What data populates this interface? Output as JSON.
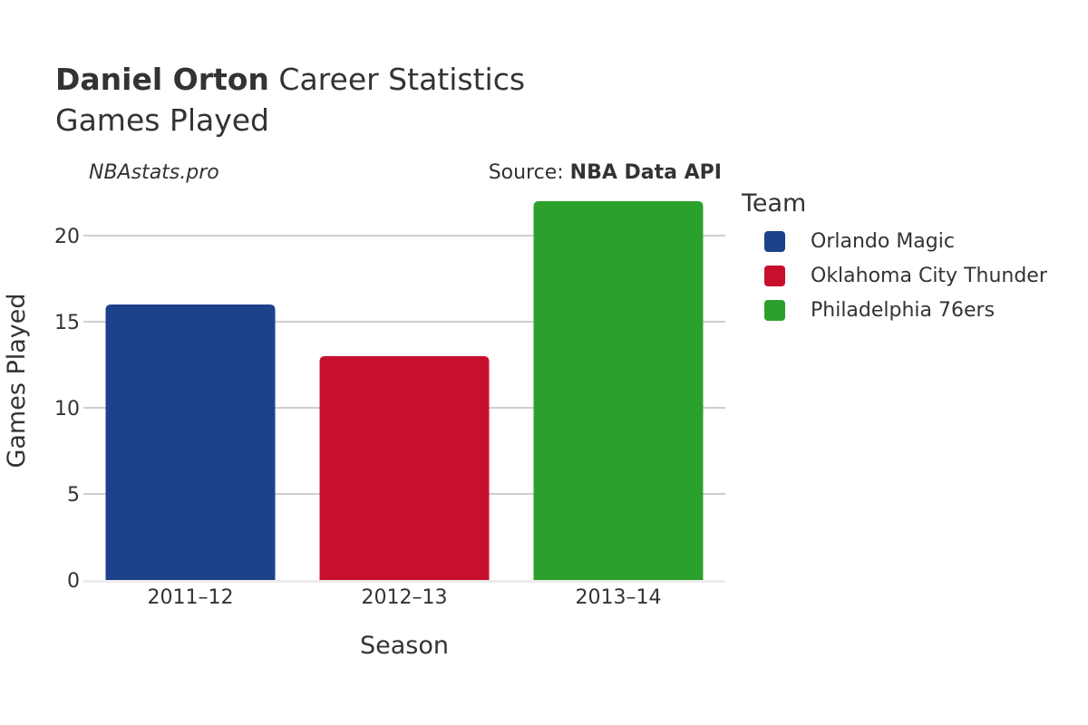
{
  "header": {
    "title_bold": "Daniel Orton",
    "title_rest": " Career Statistics",
    "subtitle": "Games Played",
    "site": "NBAstats.pro",
    "source_prefix": "Source: ",
    "source_name": "NBA Data API"
  },
  "legend": {
    "title": "Team",
    "items": [
      {
        "label": "Orlando Magic",
        "color": "#1d428a"
      },
      {
        "label": "Oklahoma City Thunder",
        "color": "#c8102e"
      },
      {
        "label": "Philadelphia 76ers",
        "color": "#2ca02c"
      }
    ]
  },
  "chart_data": {
    "type": "bar",
    "title": "Daniel Orton Career Statistics",
    "subtitle": "Games Played",
    "categories": [
      "2011–12",
      "2012–13",
      "2013–14"
    ],
    "series": [
      {
        "name": "Orlando Magic",
        "color": "#1d428a",
        "values": [
          16,
          null,
          null
        ]
      },
      {
        "name": "Oklahoma City Thunder",
        "color": "#c8102e",
        "values": [
          null,
          13,
          null
        ]
      },
      {
        "name": "Philadelphia 76ers",
        "color": "#2ca02c",
        "values": [
          null,
          null,
          22
        ]
      }
    ],
    "xlabel": "Season",
    "ylabel": "Games Played",
    "ylim": [
      0,
      23.2
    ],
    "yticks": [
      0,
      5,
      10,
      15,
      20
    ],
    "grid": true,
    "legend_position": "right"
  }
}
